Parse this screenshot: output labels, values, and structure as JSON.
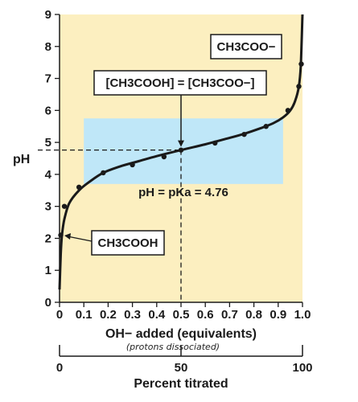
{
  "chart_data": {
    "type": "line",
    "ylabel": "pH",
    "xlabel": "OH− added (equivalents)",
    "xlabel_note": "(protons dissociated)",
    "x2label": "Percent titrated",
    "xlim": [
      0,
      1.0
    ],
    "ylim": [
      0,
      9
    ],
    "x_ticks": [
      "0",
      "0.1",
      "0.2",
      "0.3",
      "0.4",
      "0.5",
      "0.6",
      "0.7",
      "0.8",
      "0.9",
      "1.0"
    ],
    "y_ticks": [
      "0",
      "1",
      "2",
      "3",
      "4",
      "5",
      "6",
      "7",
      "8",
      "9"
    ],
    "x2_ticks": [
      "0",
      "50",
      "100"
    ],
    "series": [
      {
        "x": [
          0.0,
          0.005,
          0.01,
          0.02,
          0.04,
          0.08,
          0.12,
          0.18,
          0.25,
          0.32,
          0.4,
          0.5,
          0.6,
          0.68,
          0.76,
          0.83,
          0.88,
          0.92,
          0.95,
          0.97,
          0.985,
          0.993,
          1.0
        ],
        "y": [
          0.4,
          1.5,
          2.1,
          2.6,
          3.1,
          3.5,
          3.75,
          4.05,
          4.25,
          4.4,
          4.57,
          4.76,
          4.94,
          5.1,
          5.27,
          5.45,
          5.6,
          5.78,
          6.0,
          6.3,
          6.75,
          7.4,
          9.0
        ]
      }
    ],
    "points": [
      {
        "x": 0.005,
        "y": 2.1
      },
      {
        "x": 0.02,
        "y": 3.0
      },
      {
        "x": 0.08,
        "y": 3.6
      },
      {
        "x": 0.18,
        "y": 4.05
      },
      {
        "x": 0.3,
        "y": 4.3
      },
      {
        "x": 0.43,
        "y": 4.55
      },
      {
        "x": 0.5,
        "y": 4.76
      },
      {
        "x": 0.64,
        "y": 4.98
      },
      {
        "x": 0.76,
        "y": 5.25
      },
      {
        "x": 0.85,
        "y": 5.5
      },
      {
        "x": 0.94,
        "y": 6.0
      },
      {
        "x": 0.985,
        "y": 6.75
      },
      {
        "x": 0.995,
        "y": 7.45
      }
    ],
    "buffer_region": {
      "x": [
        0.1,
        0.92
      ],
      "y": [
        3.7,
        5.75
      ]
    },
    "pka_line": {
      "x": 0.5,
      "y": 4.76
    },
    "annotations": {
      "top_label": "CH3COO−",
      "mid_label": "[CH3COOH] = [CH3COO−]",
      "pka_label": "pH = pKa = 4.76",
      "bottom_label": "CH3COOH"
    },
    "colors": {
      "plot_background": "#fcefc0",
      "buffer_region": "#bfe7f8",
      "curve": "#1a1a1a"
    }
  }
}
